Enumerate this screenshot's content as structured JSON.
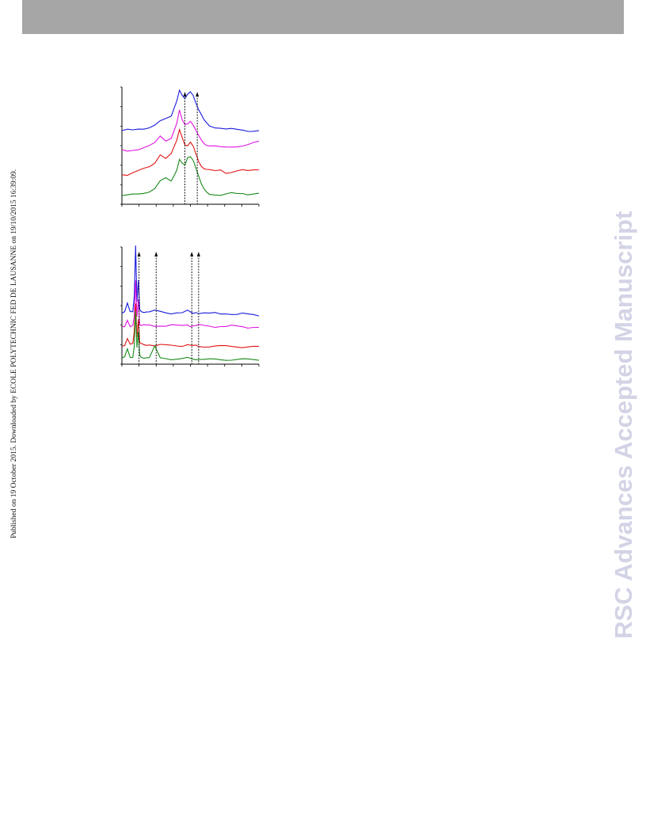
{
  "page": {
    "side_note": "Published on 19 October 2015. Downloaded by ECOLE POLYTECHNIC FED DE LAUSANNE on 19/10/2015 16:39:09.",
    "watermark": "RSC Advances Accepted Manuscript"
  },
  "colors": {
    "header": "#a6a6a6",
    "watermark": "#d3d3e6",
    "series": [
      "#1a1adb",
      "#e014e0",
      "#e01414",
      "#1a8a1a"
    ]
  },
  "chart_data": [
    {
      "type": "line",
      "x": [
        0,
        4,
        8,
        12,
        16,
        20,
        24,
        28,
        32,
        36,
        40,
        42,
        44,
        46,
        48,
        50,
        52,
        54,
        56,
        58,
        60,
        62,
        64,
        68,
        72,
        76,
        80,
        84,
        88,
        92,
        96,
        100
      ],
      "series": [
        {
          "values": [
            0.2,
            0.21,
            0.2,
            0.22,
            0.23,
            0.25,
            0.28,
            0.33,
            0.36,
            0.4,
            0.62,
            0.78,
            0.7,
            0.64,
            0.7,
            0.74,
            0.7,
            0.6,
            0.5,
            0.42,
            0.34,
            0.3,
            0.27,
            0.25,
            0.24,
            0.22,
            0.22,
            0.21,
            0.21,
            0.2,
            0.2,
            0.2
          ]
        },
        {
          "values": [
            0.2,
            0.19,
            0.21,
            0.22,
            0.24,
            0.26,
            0.3,
            0.4,
            0.34,
            0.38,
            0.58,
            0.76,
            0.62,
            0.56,
            0.58,
            0.62,
            0.56,
            0.48,
            0.4,
            0.34,
            0.3,
            0.28,
            0.27,
            0.26,
            0.24,
            0.24,
            0.25,
            0.26,
            0.27,
            0.28,
            0.3,
            0.32
          ]
        },
        {
          "values": [
            0.18,
            0.17,
            0.2,
            0.22,
            0.25,
            0.28,
            0.34,
            0.46,
            0.4,
            0.46,
            0.64,
            0.8,
            0.7,
            0.6,
            0.58,
            0.62,
            0.56,
            0.46,
            0.36,
            0.3,
            0.26,
            0.24,
            0.23,
            0.22,
            0.24,
            0.2,
            0.21,
            0.22,
            0.23,
            0.22,
            0.24,
            0.25
          ]
        },
        {
          "values": [
            0.1,
            0.1,
            0.11,
            0.12,
            0.14,
            0.16,
            0.2,
            0.3,
            0.34,
            0.3,
            0.46,
            0.62,
            0.56,
            0.52,
            0.62,
            0.64,
            0.6,
            0.5,
            0.38,
            0.26,
            0.18,
            0.14,
            0.12,
            0.12,
            0.11,
            0.12,
            0.13,
            0.12,
            0.13,
            0.12,
            0.13,
            0.13
          ]
        }
      ],
      "markers": [
        46,
        55
      ]
    },
    {
      "type": "line",
      "x": [
        0,
        2,
        4,
        6,
        8,
        9,
        10,
        11,
        12,
        13,
        14,
        16,
        18,
        20,
        24,
        28,
        32,
        36,
        40,
        44,
        48,
        50,
        52,
        54,
        56,
        60,
        64,
        68,
        72,
        76,
        80,
        84,
        88,
        92,
        96,
        100
      ],
      "series": [
        {
          "values": [
            0.05,
            0.06,
            0.18,
            0.07,
            0.08,
            0.3,
            1.0,
            0.2,
            0.5,
            0.1,
            0.08,
            0.07,
            0.07,
            0.06,
            0.08,
            0.07,
            0.06,
            0.05,
            0.06,
            0.05,
            0.08,
            0.06,
            0.05,
            0.07,
            0.05,
            0.05,
            0.04,
            0.05,
            0.04,
            0.05,
            0.04,
            0.03,
            0.04,
            0.03,
            0.03,
            0.02
          ]
        },
        {
          "values": [
            0.05,
            0.06,
            0.16,
            0.07,
            0.08,
            0.2,
            0.7,
            0.2,
            0.45,
            0.1,
            0.08,
            0.08,
            0.07,
            0.08,
            0.07,
            0.08,
            0.07,
            0.08,
            0.07,
            0.07,
            0.09,
            0.07,
            0.08,
            0.07,
            0.08,
            0.07,
            0.07,
            0.06,
            0.07,
            0.06,
            0.07,
            0.06,
            0.06,
            0.05,
            0.06,
            0.05
          ]
        },
        {
          "values": [
            0.05,
            0.06,
            0.15,
            0.06,
            0.07,
            0.25,
            0.65,
            0.18,
            0.42,
            0.08,
            0.07,
            0.06,
            0.06,
            0.07,
            0.05,
            0.06,
            0.05,
            0.05,
            0.05,
            0.05,
            0.07,
            0.05,
            0.04,
            0.05,
            0.04,
            0.04,
            0.04,
            0.04,
            0.04,
            0.04,
            0.04,
            0.04,
            0.03,
            0.03,
            0.03,
            0.03
          ]
        },
        {
          "values": [
            0.04,
            0.05,
            0.16,
            0.05,
            0.06,
            0.22,
            0.7,
            0.18,
            0.4,
            0.08,
            0.06,
            0.05,
            0.05,
            0.04,
            0.2,
            0.04,
            0.04,
            0.03,
            0.03,
            0.03,
            0.04,
            0.03,
            0.03,
            0.03,
            0.03,
            0.02,
            0.02,
            0.02,
            0.02,
            0.02,
            0.02,
            0.02,
            0.02,
            0.02,
            0.02,
            0.02
          ]
        }
      ],
      "markers": [
        12.5,
        25,
        51,
        56
      ]
    }
  ]
}
